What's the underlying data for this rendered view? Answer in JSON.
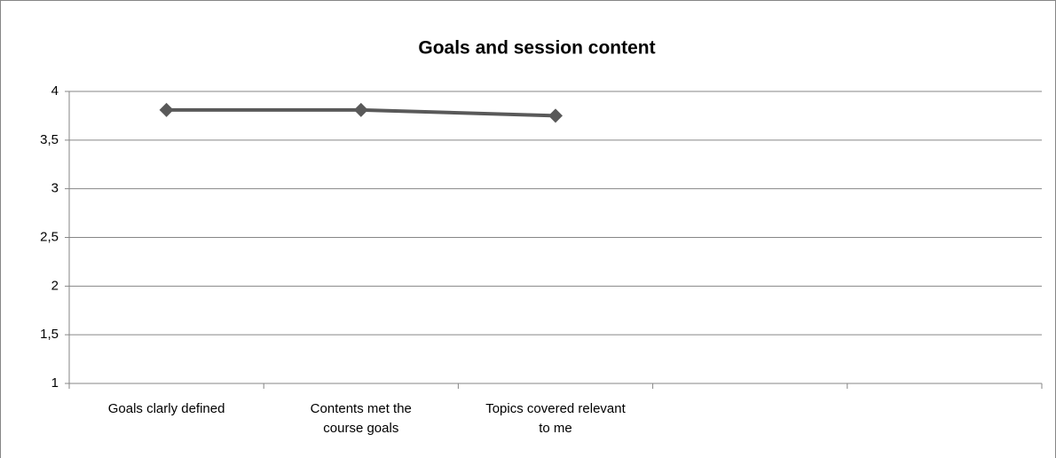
{
  "chart_data": {
    "type": "line",
    "title": "Goals and session content",
    "categories": [
      "Goals clarly defined",
      "Contents met the course goals",
      "Topics covered relevant to me",
      null,
      null
    ],
    "values": [
      3.81,
      3.81,
      3.75,
      null,
      null
    ],
    "color": "#595959",
    "ylim": [
      1,
      4
    ],
    "yticks": [
      1,
      {
        "value": 1.5,
        "label": "1,5"
      },
      2,
      {
        "value": 2.5,
        "label": "2,5"
      },
      3,
      {
        "value": 3.5,
        "label": "3,5"
      },
      4
    ],
    "grid": true
  }
}
